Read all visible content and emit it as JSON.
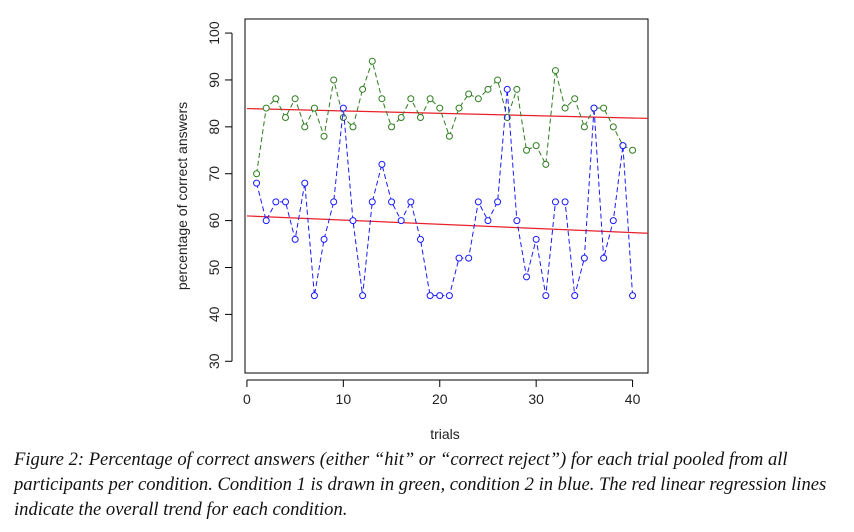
{
  "chart_data": {
    "type": "line",
    "xlabel": "trials",
    "ylabel": "percentage of correct answers",
    "xlim": [
      -0.2,
      41.6
    ],
    "ylim": [
      27.5,
      103
    ],
    "xticks": [
      0,
      10,
      20,
      30,
      40
    ],
    "yticks": [
      30,
      40,
      50,
      60,
      70,
      80,
      90,
      100
    ],
    "series": [
      {
        "color": "#2e7d1e",
        "marker": "open-circle",
        "line": "dashed",
        "x": [
          1,
          2,
          3,
          4,
          5,
          6,
          7,
          8,
          9,
          10,
          11,
          12,
          13,
          14,
          15,
          16,
          17,
          18,
          19,
          20,
          21,
          22,
          23,
          24,
          25,
          26,
          27,
          28,
          29,
          30,
          31,
          32,
          33,
          34,
          35,
          36,
          37,
          38,
          39,
          40
        ],
        "values": [
          70,
          84,
          86,
          82,
          86,
          80,
          84,
          78,
          90,
          82,
          80,
          88,
          94,
          86,
          80,
          82,
          86,
          82,
          86,
          84,
          78,
          84,
          87,
          86,
          88,
          90,
          82,
          88,
          75,
          76,
          72,
          92,
          84,
          86,
          80,
          84,
          84,
          80,
          76,
          75
        ]
      },
      {
        "color": "#1a1aff",
        "marker": "open-circle",
        "line": "dashed",
        "x": [
          1,
          2,
          3,
          4,
          5,
          6,
          7,
          8,
          9,
          10,
          11,
          12,
          13,
          14,
          15,
          16,
          17,
          18,
          19,
          20,
          21,
          22,
          23,
          24,
          25,
          26,
          27,
          28,
          29,
          30,
          31,
          32,
          33,
          34,
          35,
          36,
          37,
          38,
          39,
          40
        ],
        "values": [
          68,
          60,
          64,
          64,
          56,
          68,
          44,
          56,
          64,
          84,
          60,
          44,
          64,
          72,
          64,
          60,
          64,
          56,
          44,
          44,
          44,
          52,
          52,
          64,
          60,
          64,
          88,
          60,
          48,
          56,
          44,
          64,
          64,
          44,
          52,
          84,
          52,
          60,
          76,
          44
        ]
      }
    ],
    "regression_lines": [
      {
        "color": "#e8202a",
        "x": [
          0,
          41.6
        ],
        "values": [
          83.9,
          81.8
        ]
      },
      {
        "color": "#e8202a",
        "x": [
          0,
          41.6
        ],
        "values": [
          61.0,
          57.3
        ]
      }
    ]
  },
  "caption": "Figure 2: Percentage of correct answers (either “hit” or “correct reject”) for each trial pooled from all participants per condition. Condition 1 is drawn in green, condition 2 in blue. The red linear regression lines indicate the overall trend for each condition."
}
